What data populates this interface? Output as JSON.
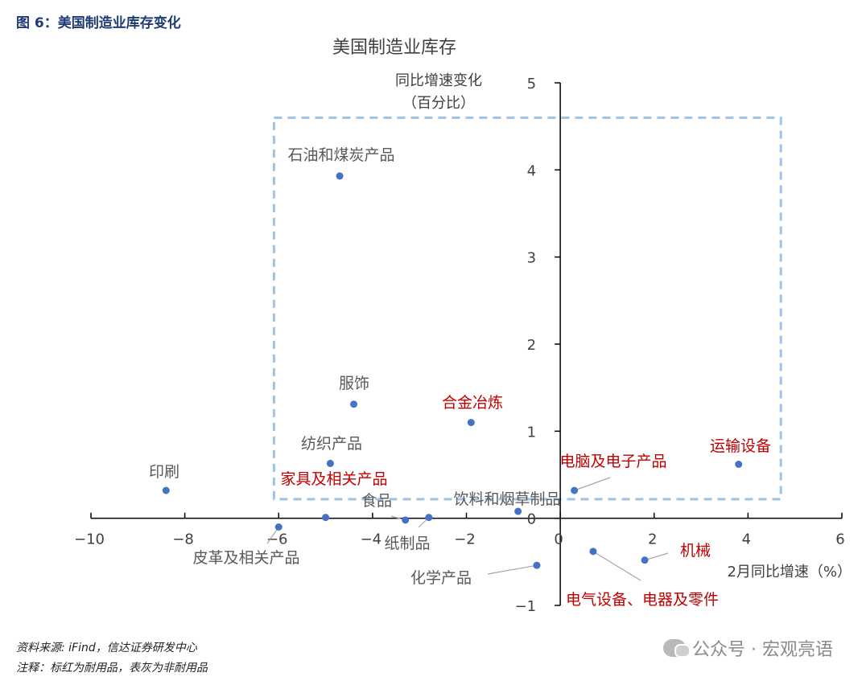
{
  "figure_title": "图 6：美国制造业库存变化",
  "footer": {
    "source": "资料来源: iFind，信达证券研发中心",
    "note": "注释：标红为耐用品，表灰为非耐用品"
  },
  "watermark": {
    "text": "公众号 · 宏观亮语",
    "icon": "wechat-icon"
  },
  "colors": {
    "point": "#4472c4",
    "durable_label": "#c00000",
    "nondurable_label": "#595959",
    "box": "#9dc3e6"
  },
  "chart_data": {
    "type": "scatter",
    "title": "美国制造业库存",
    "ylabel_lines": [
      "同比增速变化",
      "（百分比）"
    ],
    "xlabel": "2月同比增速（%）",
    "xlim": [
      -10,
      6
    ],
    "ylim": [
      -1,
      5
    ],
    "xticks": [
      -10,
      -8,
      -6,
      -4,
      -2,
      0,
      2,
      4,
      6
    ],
    "yticks": [
      -1,
      0,
      1,
      2,
      3,
      4,
      5
    ],
    "xtick_labels": [
      "−10",
      "−8",
      "−6",
      "−4",
      "−2",
      "0",
      "2",
      "4",
      "6"
    ],
    "ytick_labels": [
      "−1",
      "0",
      "1",
      "2",
      "3",
      "4",
      "5"
    ],
    "grid": false,
    "annotation_box": {
      "x": [
        -6.1,
        4.7
      ],
      "y": [
        0.22,
        4.6
      ]
    },
    "points": [
      {
        "label": "石油和煤炭产品",
        "x": -4.7,
        "y": 3.93,
        "durable": false
      },
      {
        "label": "服饰",
        "x": -4.4,
        "y": 1.31,
        "durable": false
      },
      {
        "label": "合金冶炼",
        "x": -1.9,
        "y": 1.1,
        "durable": true
      },
      {
        "label": "纺织产品",
        "x": -4.9,
        "y": 0.63,
        "durable": false
      },
      {
        "label": "印刷",
        "x": -8.4,
        "y": 0.32,
        "durable": false
      },
      {
        "label": "家具及相关产品",
        "x": -5.0,
        "y": 0.01,
        "durable": true
      },
      {
        "label": "食品",
        "x": -3.3,
        "y": -0.02,
        "durable": false
      },
      {
        "label": "纸制品",
        "x": -2.8,
        "y": 0.01,
        "durable": false
      },
      {
        "label": "饮料和烟草制品",
        "x": -0.9,
        "y": 0.08,
        "durable": false
      },
      {
        "label": "皮革及相关产品",
        "x": -6.0,
        "y": -0.1,
        "durable": false
      },
      {
        "label": "电脑及电子产品",
        "x": 0.3,
        "y": 0.32,
        "durable": true
      },
      {
        "label": "运输设备",
        "x": 3.8,
        "y": 0.62,
        "durable": true
      },
      {
        "label": "化学产品",
        "x": -0.5,
        "y": -0.54,
        "durable": false
      },
      {
        "label": "电气设备、电器及零件",
        "x": 0.7,
        "y": -0.38,
        "durable": true
      },
      {
        "label": "机械",
        "x": 1.8,
        "y": -0.48,
        "durable": true
      }
    ]
  }
}
